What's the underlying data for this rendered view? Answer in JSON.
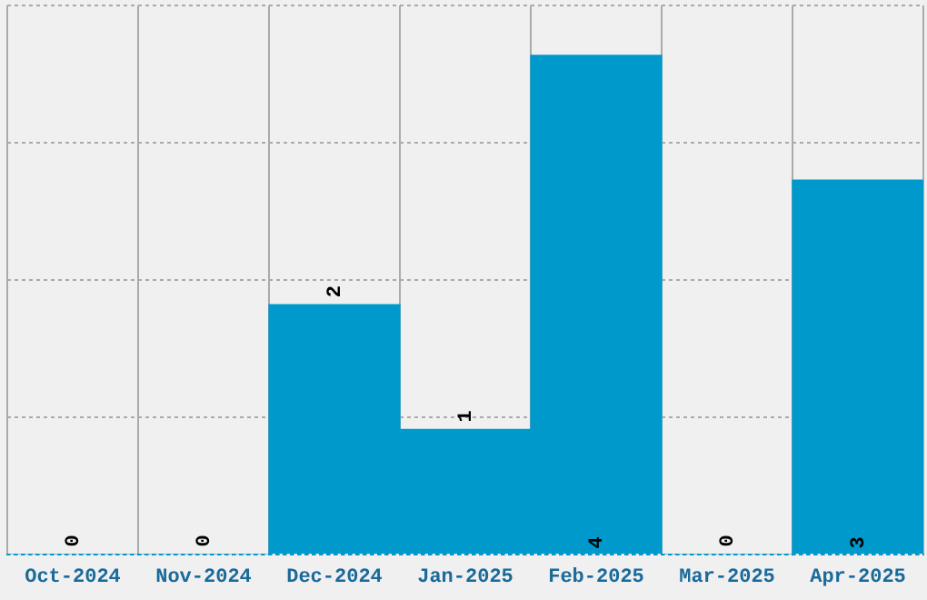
{
  "chart_data": {
    "type": "bar",
    "categories": [
      "Oct-2024",
      "Nov-2024",
      "Dec-2024",
      "Jan-2025",
      "Feb-2025",
      "Mar-2025",
      "Apr-2025"
    ],
    "values": [
      0,
      0,
      2,
      1,
      4,
      0,
      3
    ],
    "color": "#0099cc",
    "ylim": [
      0,
      4.4
    ],
    "yticks": [
      {
        "value": 0,
        "label": null
      },
      {
        "value": 1.1,
        "label": null
      },
      {
        "value": 2.2,
        "label": null
      },
      {
        "value": 3.3,
        "label": null
      },
      {
        "value": 4.4,
        "label": null
      }
    ],
    "grid": true,
    "data_labels": true,
    "tick_labels": "x",
    "legend": false
  }
}
